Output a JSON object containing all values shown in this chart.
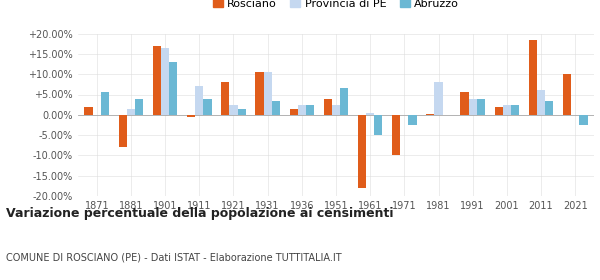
{
  "years": [
    1871,
    1881,
    1901,
    1911,
    1921,
    1931,
    1936,
    1951,
    1961,
    1971,
    1981,
    1991,
    2001,
    2011,
    2021
  ],
  "rosciano": [
    2.0,
    -8.0,
    17.0,
    -0.5,
    8.0,
    10.5,
    1.5,
    4.0,
    -18.0,
    -10.0,
    0.3,
    5.5,
    2.0,
    18.5,
    10.0
  ],
  "provincia_pe": [
    0.0,
    1.5,
    16.5,
    7.0,
    2.5,
    10.5,
    2.5,
    2.5,
    0.5,
    0.0,
    8.0,
    4.0,
    2.5,
    6.0,
    0.0
  ],
  "abruzzo": [
    5.5,
    4.0,
    13.0,
    4.0,
    1.5,
    3.5,
    2.5,
    6.5,
    -5.0,
    -2.5,
    0.0,
    4.0,
    2.5,
    3.5,
    -2.5
  ],
  "color_rosciano": "#e05c1a",
  "color_provincia": "#c5d8f0",
  "color_abruzzo": "#6bb8d4",
  "title": "Variazione percentuale della popolazione ai censimenti",
  "subtitle": "COMUNE DI ROSCIANO (PE) - Dati ISTAT - Elaborazione TUTTITALIA.IT",
  "ylim": [
    -20,
    20
  ],
  "yticks": [
    -20,
    -15,
    -10,
    -5,
    0,
    5,
    10,
    15,
    20
  ],
  "ytick_labels": [
    "-20.00%",
    "-15.00%",
    "-10.00%",
    "-5.00%",
    "0.00%",
    "+5.00%",
    "+10.00%",
    "+15.00%",
    "+20.00%"
  ],
  "legend_labels": [
    "Rosciano",
    "Provincia di PE",
    "Abruzzo"
  ],
  "title_fontsize": 9,
  "subtitle_fontsize": 7,
  "tick_fontsize": 7,
  "legend_fontsize": 8
}
